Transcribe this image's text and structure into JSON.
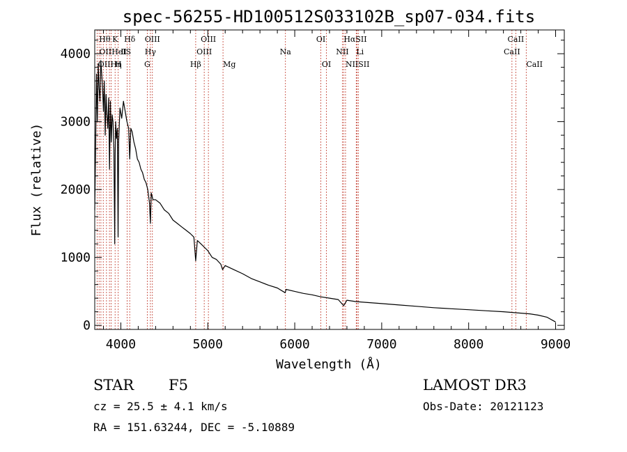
{
  "chart_data": {
    "type": "line",
    "title": "spec-56255-HD100512S033102B_sp07-034.fits",
    "xlabel": "Wavelength (Å)",
    "ylabel": "Flux (relative)",
    "xlim": [
      3700,
      9100
    ],
    "ylim": [
      -60,
      4350
    ],
    "x_ticks": [
      4000,
      5000,
      6000,
      7000,
      8000,
      9000
    ],
    "x_tick_labels": [
      "4000",
      "5000",
      "6000",
      "7000",
      "8000",
      "9000"
    ],
    "y_ticks": [
      0,
      1000,
      2000,
      3000,
      4000
    ],
    "y_tick_labels": [
      "0",
      "1000",
      "2000",
      "3000",
      "4000"
    ],
    "grid": false,
    "series": [
      {
        "name": "spectrum",
        "color": "#000000",
        "x": [
          3700,
          3710,
          3720,
          3730,
          3740,
          3750,
          3760,
          3770,
          3780,
          3790,
          3800,
          3810,
          3820,
          3830,
          3840,
          3850,
          3860,
          3870,
          3880,
          3890,
          3900,
          3910,
          3920,
          3930,
          3935,
          3940,
          3950,
          3960,
          3968,
          3975,
          3990,
          4010,
          4030,
          4050,
          4070,
          4090,
          4102,
          4115,
          4130,
          4150,
          4170,
          4190,
          4210,
          4230,
          4250,
          4270,
          4290,
          4310,
          4330,
          4340,
          4350,
          4370,
          4400,
          4450,
          4500,
          4550,
          4600,
          4650,
          4700,
          4750,
          4800,
          4840,
          4861,
          4880,
          4920,
          4960,
          5000,
          5050,
          5100,
          5150,
          5170,
          5200,
          5300,
          5400,
          5500,
          5600,
          5700,
          5800,
          5890,
          5900,
          6000,
          6100,
          6200,
          6300,
          6400,
          6500,
          6563,
          6600,
          6700,
          6800,
          7000,
          7200,
          7400,
          7600,
          7800,
          8000,
          8200,
          8400,
          8500,
          8600,
          8700,
          8800,
          8900,
          9000
        ],
        "y": [
          1700,
          2600,
          3700,
          3000,
          3850,
          3500,
          3300,
          3900,
          3700,
          3500,
          3150,
          3600,
          2800,
          3400,
          3100,
          2900,
          3350,
          2300,
          3300,
          2700,
          3100,
          3000,
          2600,
          1200,
          2500,
          3000,
          2750,
          2900,
          1300,
          2700,
          3200,
          3050,
          3300,
          3150,
          3000,
          2900,
          2450,
          2900,
          2850,
          2700,
          2600,
          2450,
          2400,
          2300,
          2250,
          2150,
          2100,
          2000,
          1800,
          1500,
          1950,
          1850,
          1850,
          1800,
          1700,
          1650,
          1550,
          1500,
          1450,
          1400,
          1350,
          1300,
          950,
          1250,
          1200,
          1150,
          1100,
          1000,
          970,
          900,
          820,
          880,
          820,
          760,
          690,
          640,
          590,
          550,
          480,
          530,
          500,
          470,
          450,
          420,
          400,
          380,
          290,
          370,
          350,
          340,
          320,
          300,
          280,
          260,
          245,
          230,
          215,
          200,
          190,
          180,
          170,
          150,
          120,
          50
        ]
      }
    ],
    "lines": [
      {
        "wl": 3727,
        "label": "OII",
        "row": 3
      },
      {
        "wl": 3750,
        "label": "Hθ",
        "row": 1
      },
      {
        "wl": 3771,
        "label": "Hη",
        "row": 3
      },
      {
        "wl": 3798,
        "label": "Hζ",
        "row": 2
      },
      {
        "wl": 3835,
        "label": "Hη",
        "row": 3
      },
      {
        "wl": 3869,
        "label": "NeIII",
        "row": 2
      },
      {
        "wl": 3889,
        "label": "Hζ",
        "row": 1
      },
      {
        "wl": 3934,
        "label": "K",
        "row": 1
      },
      {
        "wl": 3970,
        "label": "H",
        "row": 3
      },
      {
        "wl": 4072,
        "label": "SII",
        "row": 2
      },
      {
        "wl": 4102,
        "label": "Hδ",
        "row": 1
      },
      {
        "wl": 4304,
        "label": "G",
        "row": 3
      },
      {
        "wl": 4340,
        "label": "Hγ",
        "row": 2
      },
      {
        "wl": 4363,
        "label": "OIII",
        "row": 1
      },
      {
        "wl": 4861,
        "label": "Hβ",
        "row": 3
      },
      {
        "wl": 4959,
        "label": "OIII",
        "row": 2
      },
      {
        "wl": 5007,
        "label": "OIII",
        "row": 1
      },
      {
        "wl": 5175,
        "label": "Mg",
        "row": 3
      },
      {
        "wl": 5893,
        "label": "Na",
        "row": 2
      },
      {
        "wl": 6300,
        "label": "OI",
        "row": 1
      },
      {
        "wl": 6364,
        "label": "OI",
        "row": 3
      },
      {
        "wl": 6548,
        "label": "NII",
        "row": 2
      },
      {
        "wl": 6563,
        "label": "Hα",
        "row": 1
      },
      {
        "wl": 6584,
        "label": "NII",
        "row": 3
      },
      {
        "wl": 6707,
        "label": "Li",
        "row": 2
      },
      {
        "wl": 6716,
        "label": "SII",
        "row": 1
      },
      {
        "wl": 6731,
        "label": "SII",
        "row": 3
      },
      {
        "wl": 8498,
        "label": "CaII",
        "row": 2
      },
      {
        "wl": 8542,
        "label": "CaII",
        "row": 1
      },
      {
        "wl": 8662,
        "label": "CaII",
        "row": 3
      }
    ],
    "label_texts": {
      "r1": [
        "Hθ",
        "K",
        "Hδ",
        "OIII",
        "OIII",
        "OI",
        "HαSII",
        "CaII"
      ],
      "r2": [
        "OIIHeIS",
        "II",
        "Hγ",
        "OIII",
        "Na",
        "NII",
        "Li",
        "CaII"
      ],
      "r3": [
        "OIIHη",
        "H",
        "G",
        "Hβ",
        "Mg",
        "OI",
        "NIISII",
        "CaII"
      ]
    }
  },
  "info": {
    "object_class": "STAR",
    "subclass": "F5",
    "redshift": "cz = 25.5 ± 4.1 km/s",
    "coords": "RA = 151.63244, DEC =  -5.10889",
    "survey": "LAMOST DR3",
    "obs_date": "Obs-Date: 20121123"
  }
}
